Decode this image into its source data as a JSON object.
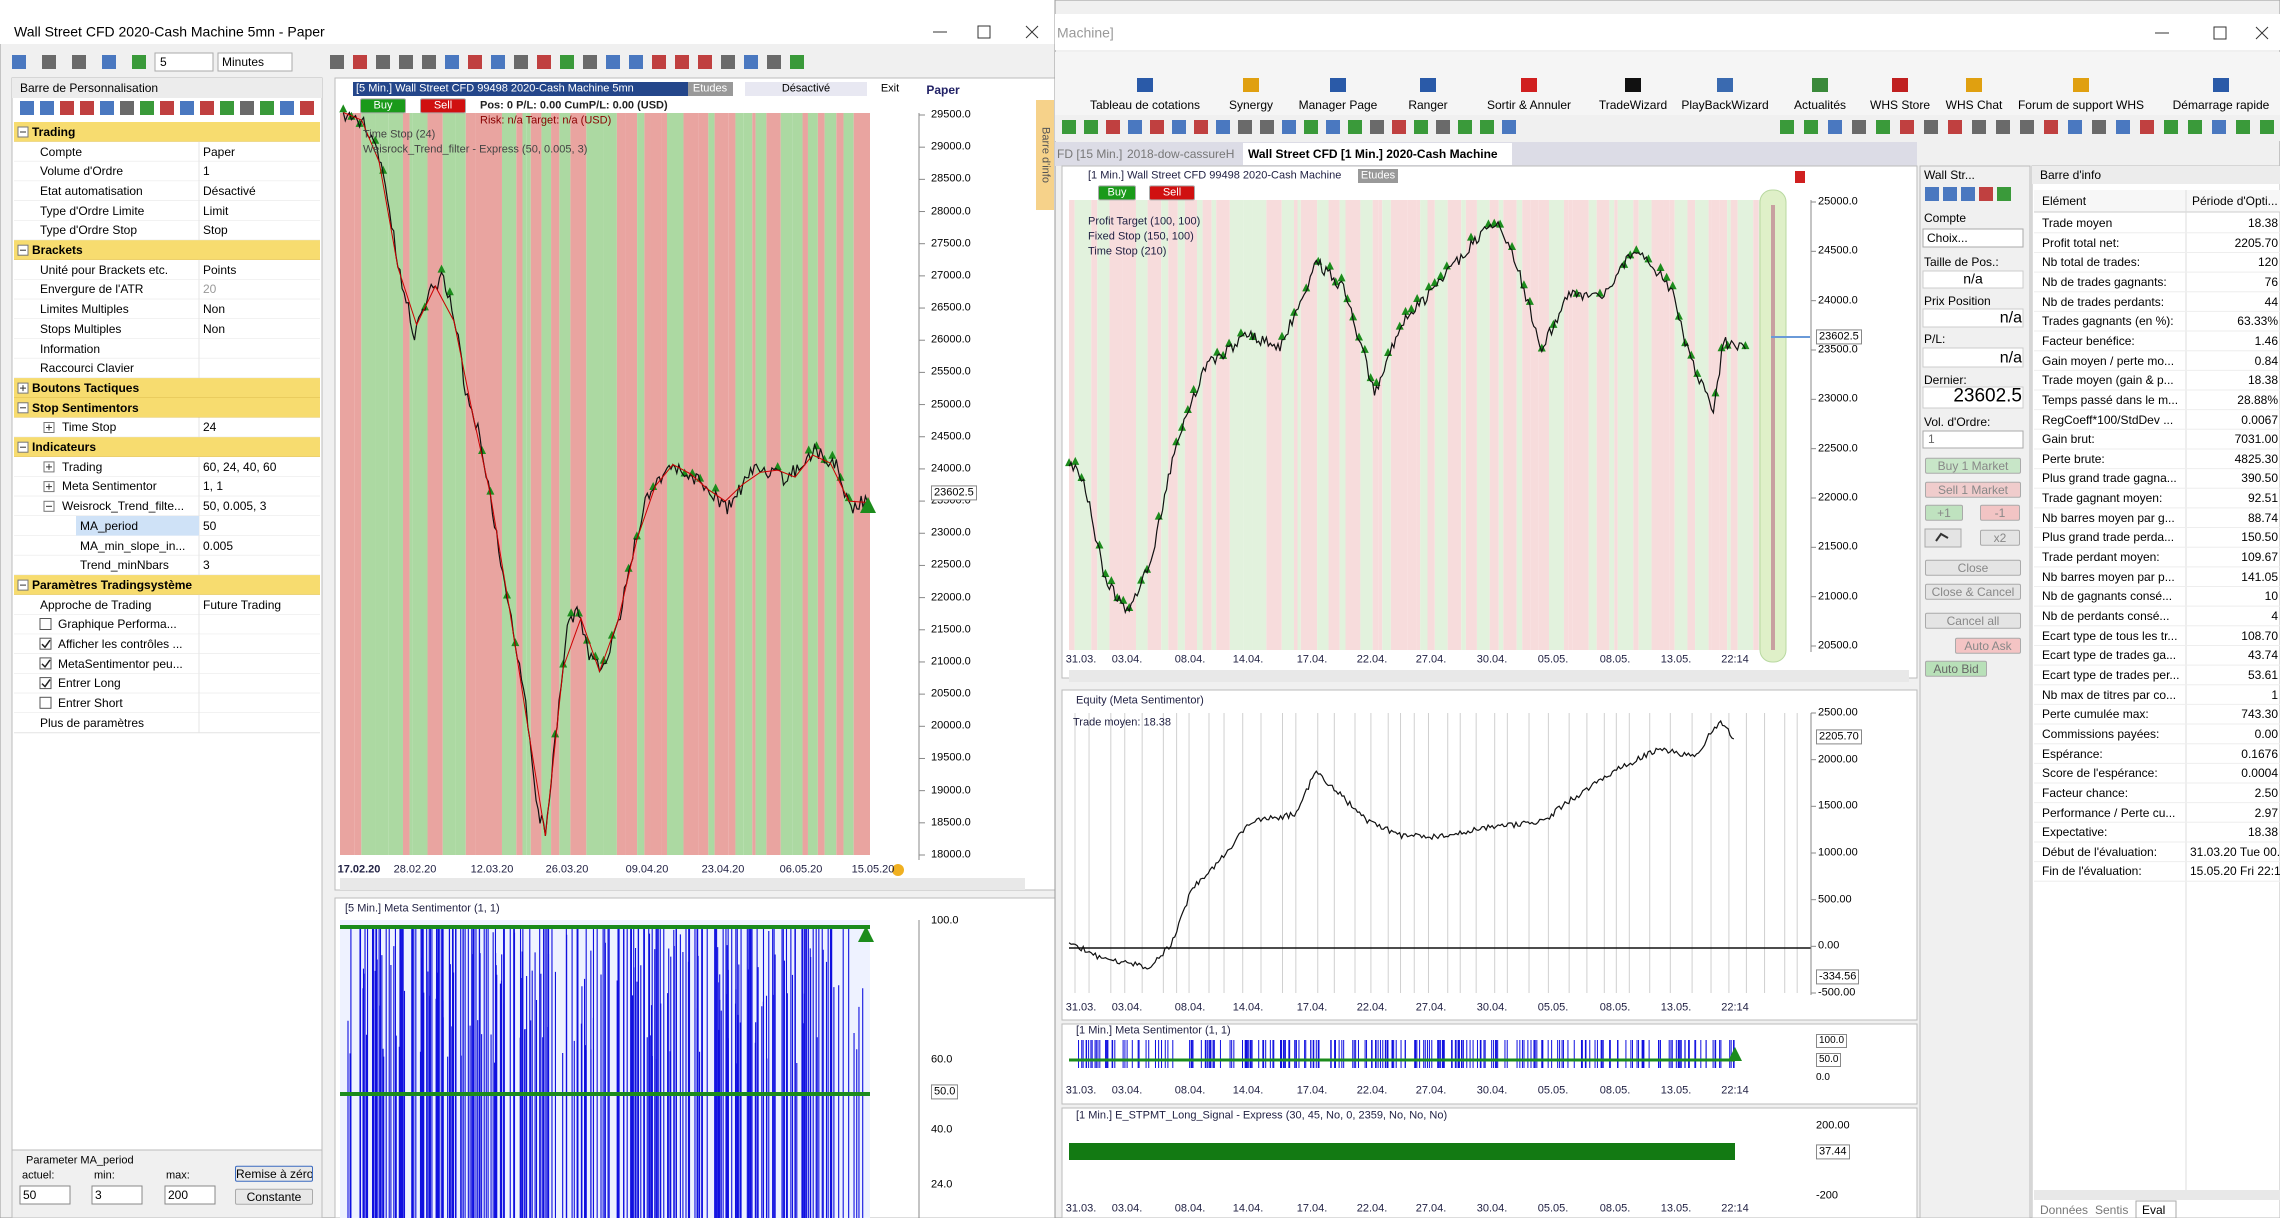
{
  "left_window": {
    "title": "Wall Street CFD  2020-Cash Machine 5mn - Paper",
    "period": "5",
    "unit": "Minutes"
  },
  "panel": {
    "title": "Barre de Personnalisation",
    "sections": [
      {
        "title": "Trading",
        "rows": [
          {
            "label": "Compte",
            "value": "Paper"
          },
          {
            "label": "Volume d'Ordre",
            "value": "1"
          },
          {
            "label": "Etat automatisation",
            "value": "Désactivé"
          },
          {
            "label": "Type d'Ordre Limite",
            "value": "Limit"
          },
          {
            "label": "Type d'Ordre Stop",
            "value": "Stop"
          }
        ]
      },
      {
        "title": "Brackets",
        "rows": [
          {
            "label": "Unité pour Brackets etc.",
            "value": "Points"
          },
          {
            "label": "Envergure de l'ATR",
            "value": "20",
            "disabled": true
          },
          {
            "label": "Limites Multiples",
            "value": "Non"
          },
          {
            "label": "Stops Multiples",
            "value": "Non"
          },
          {
            "label": "Information"
          },
          {
            "label": "Raccourci Clavier"
          }
        ]
      },
      {
        "title": "Boutons Tactiques",
        "expandable": true,
        "rows": []
      },
      {
        "title": "Stop Sentimentors",
        "rows": [
          {
            "label": "Time Stop",
            "value": "24",
            "expandable": true
          }
        ]
      },
      {
        "title": "Indicateurs",
        "rows": [
          {
            "label": "Trading",
            "value": "60, 24, 40, 60",
            "expandable": true
          },
          {
            "label": "Meta Sentimentor",
            "value": "1, 1",
            "expandable": true
          },
          {
            "label": "Weisrock_Trend_filte...",
            "value": "50, 0.005, 3",
            "children": [
              {
                "label": "MA_period",
                "value": "50"
              },
              {
                "label": "MA_min_slope_in...",
                "value": "0.005"
              },
              {
                "label": "Trend_minNbars",
                "value": "3"
              }
            ]
          }
        ]
      },
      {
        "title": "Paramètres Tradingsystème",
        "rows": [
          {
            "label": "Approche de Trading",
            "value": "Future Trading"
          },
          {
            "label": "Graphique Performa...",
            "checked": false
          },
          {
            "label": "Afficher les contrôles ...",
            "checked": true
          },
          {
            "label": "MetaSentimentor peu...",
            "checked": true
          },
          {
            "label": "Entrer Long",
            "checked": true
          },
          {
            "label": "Entrer Short",
            "checked": false
          },
          {
            "label": "Plus de paramètres"
          }
        ]
      }
    ],
    "editor": {
      "title": "Parameter MA_period",
      "current_label": "actuel:",
      "min_label": "min:",
      "max_label": "max:",
      "current": "50",
      "min": "3",
      "max": "200",
      "reset": "Remise à zéro",
      "constant": "Constante"
    }
  },
  "left_chart": {
    "header": "[5 Min.] Wall Street CFD   99498 2020-Cash Machine 5mn",
    "studies": "Etudes",
    "status": "Désactivé",
    "exit": "Exit",
    "account": "Paper",
    "buy": "Buy",
    "sell": "Sell",
    "position": "Pos: 0  P/L: 0.00  CumP/L: 0.00 (USD)",
    "risk": "Risk: n/a  Target: n/a (USD)",
    "legend": [
      "Time Stop  (24)",
      "Weisrock_Trend_filter - Express  (50, 0.005, 3)"
    ],
    "yticks": [
      "29500.0",
      "29000.0",
      "28500.0",
      "28000.0",
      "27500.0",
      "27000.0",
      "26500.0",
      "26000.0",
      "25500.0",
      "25000.0",
      "24500.0",
      "24000.0",
      "23500.0",
      "23000.0",
      "22500.0",
      "22000.0",
      "21500.0",
      "21000.0",
      "20500.0",
      "20000.0",
      "19500.0",
      "19000.0",
      "18500.0",
      "18000.0"
    ],
    "last_price": "23602.5",
    "xticks": [
      "17.02.20",
      "28.02.20",
      "12.03.20",
      "26.03.20",
      "09.04.20",
      "23.04.20",
      "06.05.20",
      "15.05.20"
    ],
    "info_tab": "Barre d'info"
  },
  "left_indicator": {
    "header": "[5 Min.] Meta Sentimentor  (1, 1)",
    "levels": [
      "100.0",
      "60.0",
      "50.0",
      "40.0",
      "24.0"
    ]
  },
  "right_window": {
    "title": "Machine]",
    "ribbon": [
      "Tableau de cotations",
      "Synergy",
      "Manager Page",
      "Ranger",
      "Sortir & Annuler",
      "TradeWizard",
      "PlayBackWizard",
      "Actualités",
      "WHS Store",
      "WHS Chat",
      "Forum de support WHS",
      "Démarrage rapide"
    ],
    "tabs": [
      "FD [15 Min.]",
      "2018-dow-cassureH",
      "Wall Street CFD [1 Min.]  2020-Cash Machine"
    ]
  },
  "time_axis": [
    "31.03.",
    "03.04.",
    "08.04.",
    "14.04.",
    "17.04.",
    "22.04.",
    "27.04.",
    "30.04.",
    "05.05.",
    "08.05.",
    "13.05.",
    "22:14"
  ],
  "price_chart": {
    "header": "[1 Min.] Wall Street CFD   99498 2020-Cash Machine",
    "studies": "Etudes",
    "buy": "Buy",
    "sell": "Sell",
    "legend": [
      "Profit Target  (100, 100)",
      "Fixed Stop  (150, 100)",
      "Time Stop  (210)"
    ],
    "yticks": [
      "25000.0",
      "24500.0",
      "24000.0",
      "23500.0",
      "23000.0",
      "22500.0",
      "22000.0",
      "21500.0",
      "21000.0",
      "20500.0"
    ],
    "last_price": "23602.5"
  },
  "equity_chart": {
    "header": "Equity (Meta Sentimentor)",
    "note": "Trade moyen: 18.38",
    "yticks": [
      "2500.00",
      "2000.00",
      "1500.00",
      "1000.00",
      "500.00",
      "0.00",
      "-500.00"
    ],
    "last_value": "2205.70",
    "min_value": "-334.56"
  },
  "meta_chart": {
    "header": "[1 Min.] Meta Sentimentor  (1, 1)",
    "levels": [
      "100.0",
      "50.0",
      "0.0"
    ]
  },
  "signal_chart": {
    "header": "[1 Min.] E_STPMT_Long_Signal - Express  (30, 45, No, 0, 2359, No, No, No)",
    "levels": [
      "200.00",
      "37.44",
      "-200"
    ]
  },
  "order_panel": {
    "title": "Wall Str...",
    "account_label": "Compte",
    "account": "Choix...",
    "size_label": "Taille de Pos.:",
    "size": "n/a",
    "price_label": "Prix Position",
    "price": "n/a",
    "pl_label": "P/L:",
    "pl": "n/a",
    "last_label": "Dernier:",
    "last": "23602.5",
    "volume_label": "Vol. d'Ordre:",
    "volume": "1",
    "buy": "Buy 1 Market",
    "sell": "Sell 1 Market",
    "plus": "+1",
    "minus": "-1",
    "double": "x2",
    "close": "Close",
    "close_cancel": "Close & Cancel",
    "cancel_all": "Cancel all",
    "auto_ask": "Auto Ask",
    "auto_bid": "Auto Bid"
  },
  "info_bar": {
    "title": "Barre d'info",
    "columns": [
      "Elément",
      "Période d'Opti..."
    ],
    "rows": [
      [
        "Trade moyen",
        "18.38"
      ],
      [
        "Profit total net:",
        "2205.70"
      ],
      [
        "Nb total de trades:",
        "120"
      ],
      [
        "Nb de trades gagnants:",
        "76"
      ],
      [
        "Nb de trades perdants:",
        "44"
      ],
      [
        "Trades gagnants (en %):",
        "63.33%"
      ],
      [
        "Facteur benéfice:",
        "1.46"
      ],
      [
        "Gain moyen / perte mo...",
        "0.84"
      ],
      [
        "Trade moyen (gain & p...",
        "18.38"
      ],
      [
        "Temps passé dans le m...",
        "28.88%"
      ],
      [
        "RegCoeff*100/StdDev ...",
        "0.0067"
      ],
      [
        "Gain brut:",
        "7031.00"
      ],
      [
        "Perte brute:",
        "4825.30"
      ],
      [
        "Plus grand trade gagna...",
        "390.50"
      ],
      [
        "Trade gagnant moyen:",
        "92.51"
      ],
      [
        "Nb barres moyen par g...",
        "88.74"
      ],
      [
        "Plus grand trade perda...",
        "150.50"
      ],
      [
        "Trade perdant moyen:",
        "109.67"
      ],
      [
        "Nb barres moyen par p...",
        "141.05"
      ],
      [
        "Nb de gagnants consé...",
        "10"
      ],
      [
        "Nb de perdants consé...",
        "4"
      ],
      [
        "Ecart type de tous les tr...",
        "108.70"
      ],
      [
        "Ecart type de trades ga...",
        "43.74"
      ],
      [
        "Ecart type de trades per...",
        "53.61"
      ],
      [
        "Nb max de titres par co...",
        "1"
      ],
      [
        "Perte cumulée max:",
        "743.30"
      ],
      [
        "Commissions payées:",
        "0.00"
      ],
      [
        "Espérance:",
        "0.1676"
      ],
      [
        "Score de l'espérance:",
        "0.0004"
      ],
      [
        "Facteur chance:",
        "2.50"
      ],
      [
        "Performance / Perte cu...",
        "2.97"
      ],
      [
        "Expectative:",
        "18.38"
      ],
      [
        "Début de l'évaluation:",
        "31.03.20 Tue 00..."
      ],
      [
        "Fin de l'évaluation:",
        "15.05.20 Fri 22:14"
      ]
    ],
    "tabs": [
      "Données",
      "Sentis",
      "Eval"
    ]
  }
}
